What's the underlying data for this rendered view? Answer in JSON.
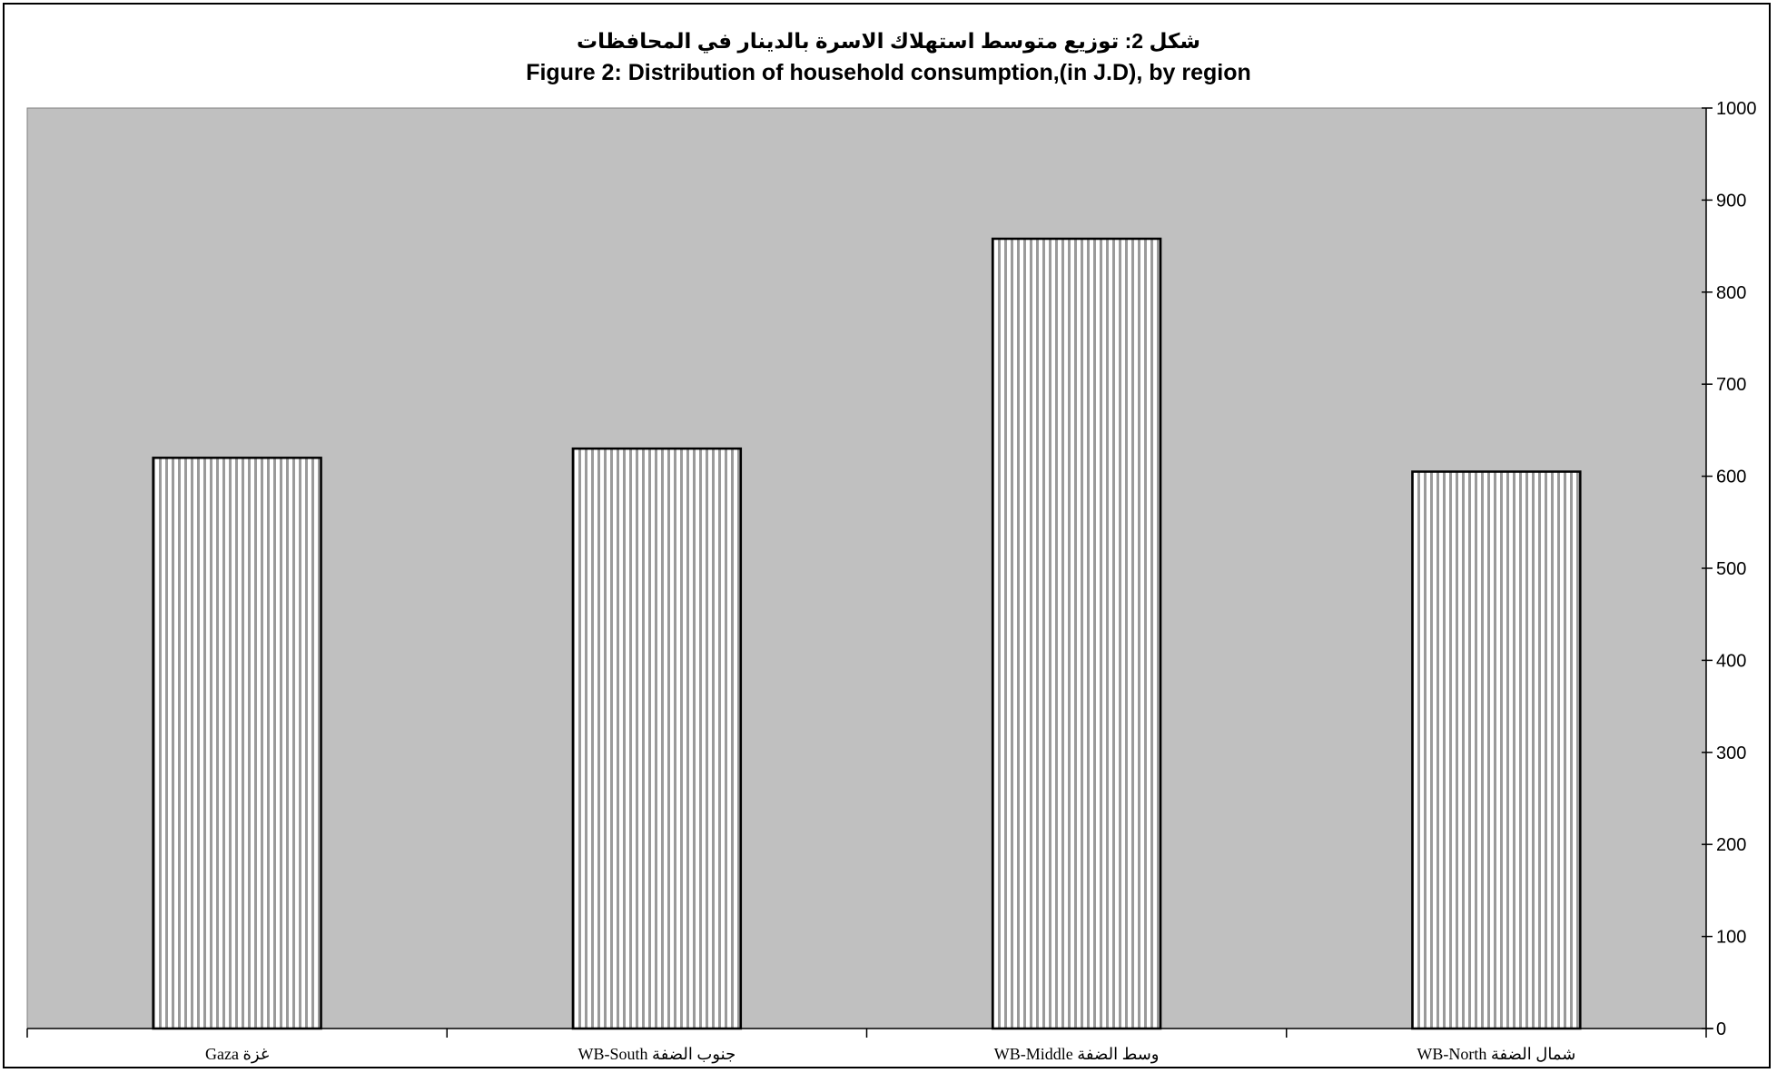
{
  "chart_data": {
    "type": "bar",
    "title_ar": "شكل  2: توزيع متوسط استهلاك الاسرة بالدينار في المحافظات",
    "title": "Figure 2: Distribution of household consumption,(in J.D), by region",
    "xlabel": "",
    "ylabel": "",
    "categories": [
      "Gaza غزة",
      "WB-South جنوب الضفة",
      "WB-Middle وسط الضفة",
      "WB-North شمال الضفة"
    ],
    "values": [
      620,
      630,
      858,
      605
    ],
    "ylim": [
      0,
      1000
    ],
    "yticks": [
      "0",
      "100",
      "200",
      "300",
      "400",
      "500",
      "600",
      "700",
      "800",
      "900",
      "1000"
    ],
    "y_axis_side": "right",
    "grid": false,
    "legend": "none",
    "colors": {
      "plot_background": "#c0c0c0",
      "bar_fill": "#ffffff",
      "bar_stripe": "#9a9a9a",
      "bar_outline": "#000000"
    }
  }
}
